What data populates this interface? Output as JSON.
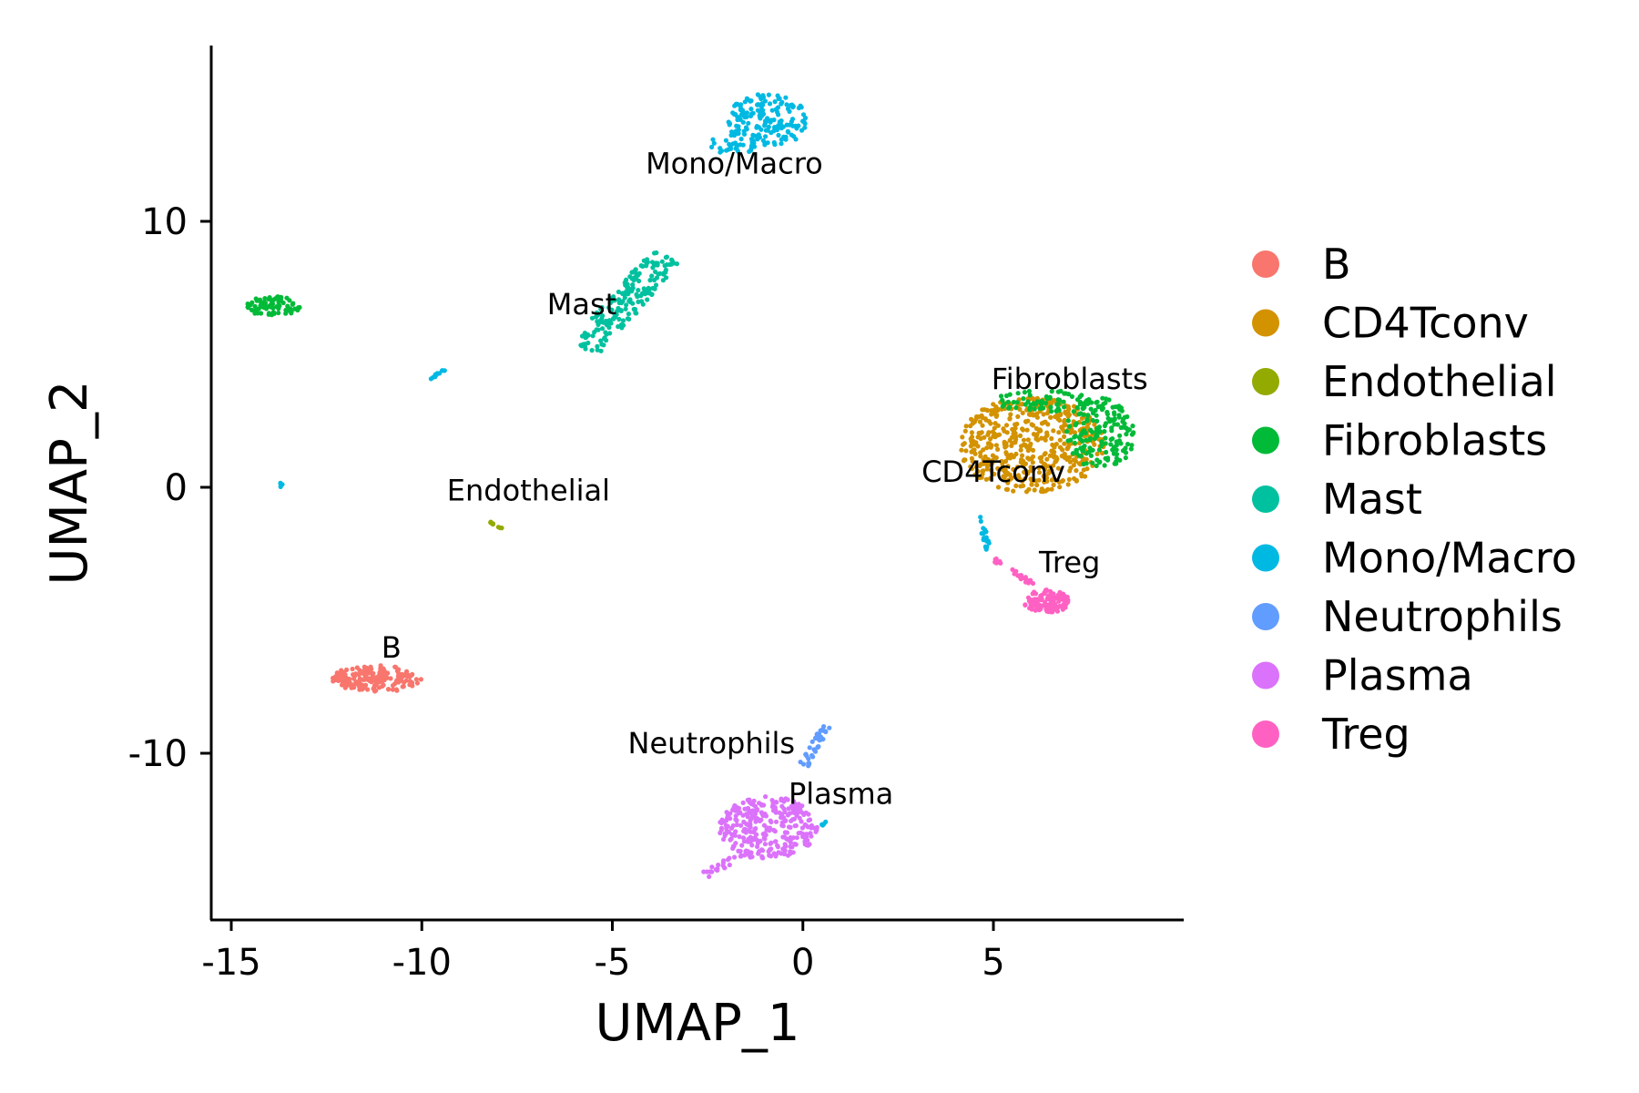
{
  "chart_data": {
    "type": "scatter",
    "title": "",
    "xlabel": "UMAP_1",
    "ylabel": "UMAP_2",
    "xlim": [
      -15.5,
      9.8
    ],
    "ylim": [
      -16.2,
      16.5
    ],
    "x_ticks": [
      -15,
      -10,
      -5,
      0,
      5
    ],
    "x_tick_labels": [
      "-15",
      "-10",
      "-5",
      "0",
      "5"
    ],
    "y_ticks": [
      -10,
      0,
      10
    ],
    "y_tick_labels": [
      "-10",
      "0",
      "10"
    ],
    "grid": false,
    "legend": {
      "placement": "right",
      "entries": [
        {
          "name": "B",
          "color": "#F8766D"
        },
        {
          "name": "CD4Tconv",
          "color": "#D39200"
        },
        {
          "name": "Endothelial",
          "color": "#93AA00"
        },
        {
          "name": "Fibroblasts",
          "color": "#00BA38"
        },
        {
          "name": "Mast",
          "color": "#00C19F"
        },
        {
          "name": "Mono/Macro",
          "color": "#00B9E3"
        },
        {
          "name": "Neutrophils",
          "color": "#619CFF"
        },
        {
          "name": "Plasma",
          "color": "#DB72FB"
        },
        {
          "name": "Treg",
          "color": "#FF61C3"
        }
      ]
    },
    "cluster_labels": [
      {
        "text": "Mono/Macro",
        "x": -1.8,
        "y": 11.8
      },
      {
        "text": "Mast",
        "x": -5.8,
        "y": 6.5
      },
      {
        "text": "Fibroblasts",
        "x": 7.0,
        "y": 3.7
      },
      {
        "text": "CD4Tconv",
        "x": 5.0,
        "y": 0.2
      },
      {
        "text": "Endothelial",
        "x": -7.2,
        "y": -0.5
      },
      {
        "text": "Treg",
        "x": 7.0,
        "y": -3.2
      },
      {
        "text": "B",
        "x": -10.8,
        "y": -6.4
      },
      {
        "text": "Neutrophils",
        "x": -2.4,
        "y": -10.0
      },
      {
        "text": "Plasma",
        "x": 1.0,
        "y": -11.9
      }
    ],
    "clusters": [
      {
        "series": "Mono/Macro",
        "shape": "ellipse",
        "cx": -0.9,
        "cy": 13.8,
        "rx": 1.1,
        "ry": 1.0,
        "n": 170
      },
      {
        "series": "Mono/Macro",
        "shape": "ellipse",
        "cx": -1.8,
        "cy": 12.9,
        "rx": 0.7,
        "ry": 0.4,
        "n": 30
      },
      {
        "series": "Mast",
        "shape": "line",
        "x1": -5.7,
        "y1": 5.2,
        "x2": -3.6,
        "y2": 8.7,
        "width": 0.9,
        "n": 190
      },
      {
        "series": "Fibroblasts",
        "shape": "ellipse",
        "cx": -13.9,
        "cy": 6.8,
        "rx": 0.7,
        "ry": 0.38,
        "n": 70
      },
      {
        "series": "Mono/Macro",
        "shape": "line",
        "x1": -9.8,
        "y1": 4.1,
        "x2": -9.4,
        "y2": 4.4,
        "width": 0.1,
        "n": 10
      },
      {
        "series": "Mono/Macro",
        "shape": "ellipse",
        "cx": -13.75,
        "cy": 0.1,
        "rx": 0.1,
        "ry": 0.1,
        "n": 4
      },
      {
        "series": "Endothelial",
        "shape": "line",
        "x1": -8.2,
        "y1": -1.3,
        "x2": -7.9,
        "y2": -1.55,
        "width": 0.05,
        "n": 8
      },
      {
        "series": "B",
        "shape": "ellipse",
        "cx": -11.2,
        "cy": -7.2,
        "rx": 1.2,
        "ry": 0.5,
        "n": 170
      },
      {
        "series": "CD4Tconv",
        "shape": "ellipse",
        "cx": 6.0,
        "cy": 1.6,
        "rx": 1.9,
        "ry": 1.8,
        "n": 520
      },
      {
        "series": "Fibroblasts",
        "shape": "ellipse",
        "cx": 7.8,
        "cy": 2.0,
        "rx": 0.9,
        "ry": 1.4,
        "n": 170
      },
      {
        "series": "Fibroblasts",
        "shape": "ellipse",
        "cx": 6.3,
        "cy": 3.2,
        "rx": 1.3,
        "ry": 0.45,
        "n": 70
      },
      {
        "series": "Mono/Macro",
        "shape": "line",
        "x1": 4.6,
        "y1": -1.0,
        "x2": 4.9,
        "y2": -2.4,
        "width": 0.15,
        "n": 18
      },
      {
        "series": "Treg",
        "shape": "line",
        "x1": 5.0,
        "y1": -2.7,
        "x2": 6.1,
        "y2": -3.7,
        "width": 0.15,
        "n": 25
      },
      {
        "series": "Treg",
        "shape": "ellipse",
        "cx": 6.4,
        "cy": -4.3,
        "rx": 0.6,
        "ry": 0.45,
        "n": 110
      },
      {
        "series": "Neutrophils",
        "shape": "line",
        "x1": 0.0,
        "y1": -10.5,
        "x2": 0.6,
        "y2": -9.0,
        "width": 0.25,
        "n": 40
      },
      {
        "series": "Plasma",
        "shape": "ellipse",
        "cx": -0.9,
        "cy": -12.8,
        "rx": 1.3,
        "ry": 1.2,
        "n": 300
      },
      {
        "series": "Plasma",
        "shape": "line",
        "x1": -2.6,
        "y1": -14.6,
        "x2": -1.6,
        "y2": -13.8,
        "width": 0.25,
        "n": 25
      },
      {
        "series": "Mono/Macro",
        "shape": "line",
        "x1": 0.5,
        "y1": -12.7,
        "x2": 0.7,
        "y2": -12.5,
        "width": 0.05,
        "n": 5
      }
    ]
  }
}
